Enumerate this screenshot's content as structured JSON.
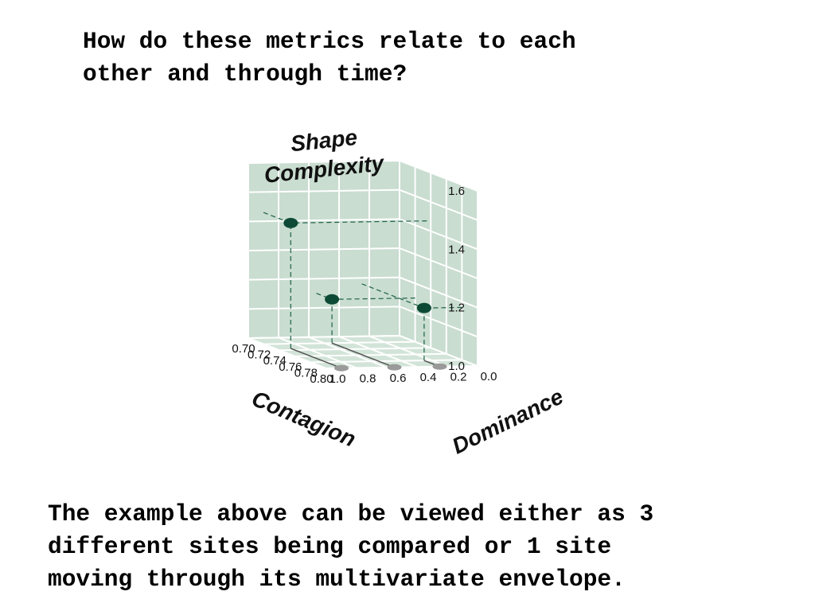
{
  "page": {
    "heading": "How do these metrics relate to each\nother and through time?",
    "caption": "The example above can be viewed either as 3\ndifferent sites being compared or 1 site\nmoving through its multivariate envelope."
  },
  "chart_data": {
    "type": "scatter",
    "projection": "3d",
    "title": "",
    "z_label": "Shape Complexity",
    "x_label": "Contagion",
    "y_label": "Dominance",
    "z_ticks": [
      "1.6",
      "1.4",
      "1.2",
      "1.0"
    ],
    "x_ticks": [
      "0.70",
      "0.72",
      "0.74",
      "0.76",
      "0.78",
      "0.80"
    ],
    "y_ticks": [
      "1.0",
      "0.8",
      "0.6",
      "0.4",
      "0.2",
      "0.0"
    ],
    "xlim": [
      0.7,
      0.8
    ],
    "ylim": [
      0.0,
      1.0
    ],
    "zlim": [
      1.0,
      1.6
    ],
    "grid": true,
    "colors": {
      "panel": "#c9ddd0",
      "floor": "#d2e4d8",
      "grid": "#ffffff",
      "point": "#0d4a35",
      "shadow": "#9a9a9a",
      "guide": "#1d6048"
    },
    "points": [
      {
        "contagion": 0.735,
        "dominance": 0.9,
        "shape_complexity": 1.43
      },
      {
        "contagion": 0.72,
        "dominance": 0.55,
        "shape_complexity": 1.15
      },
      {
        "contagion": 0.78,
        "dominance": 0.25,
        "shape_complexity": 1.18
      }
    ]
  }
}
